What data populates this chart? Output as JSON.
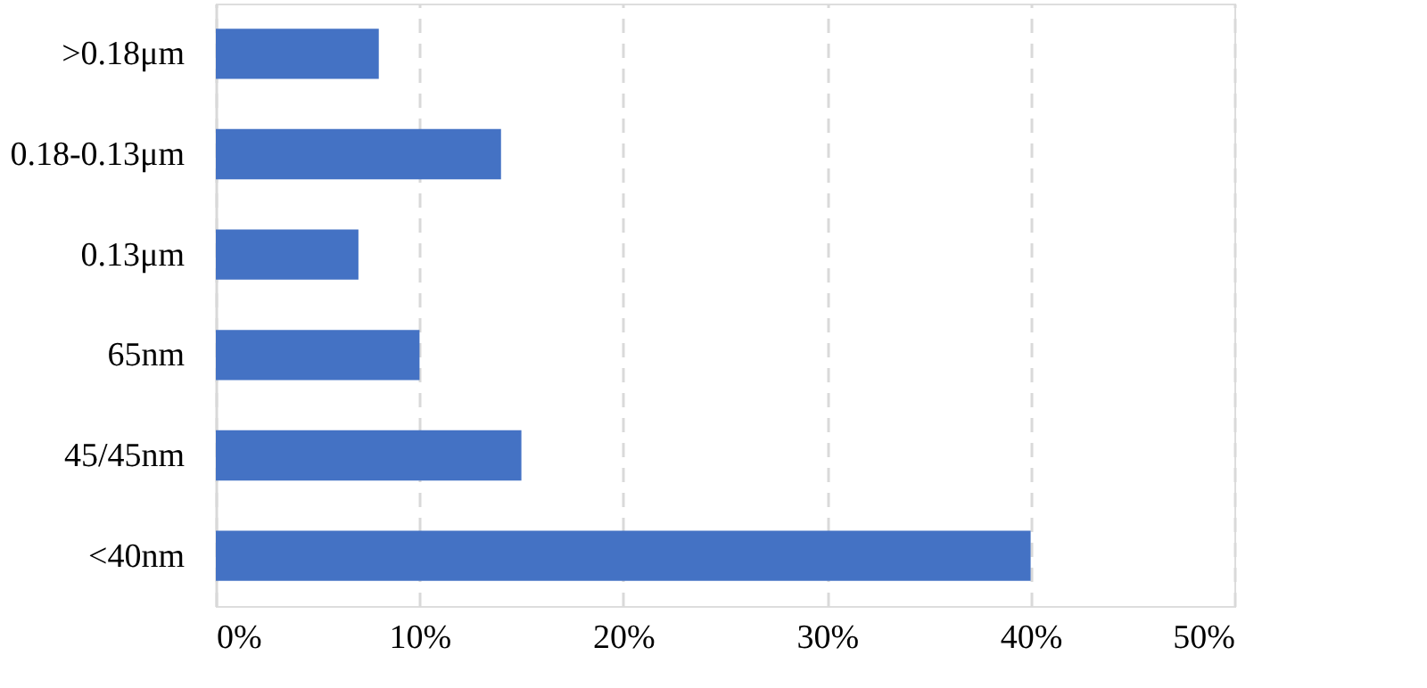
{
  "chart_data": {
    "type": "bar",
    "orientation": "horizontal",
    "categories": [
      ">0.18μm",
      "0.18-0.13μm",
      "0.13μm",
      "65nm",
      "45/45nm",
      "<40nm"
    ],
    "values": [
      8,
      14,
      7,
      10,
      15,
      40
    ],
    "color": "#4472c4",
    "xlim": [
      0,
      50
    ],
    "xticks": [
      {
        "value": 0,
        "label": "0%"
      },
      {
        "value": 10,
        "label": "10%"
      },
      {
        "value": 20,
        "label": "20%"
      },
      {
        "value": 30,
        "label": "30%"
      },
      {
        "value": 40,
        "label": "40%"
      },
      {
        "value": 50,
        "label": "50%"
      }
    ],
    "grid": "x"
  }
}
